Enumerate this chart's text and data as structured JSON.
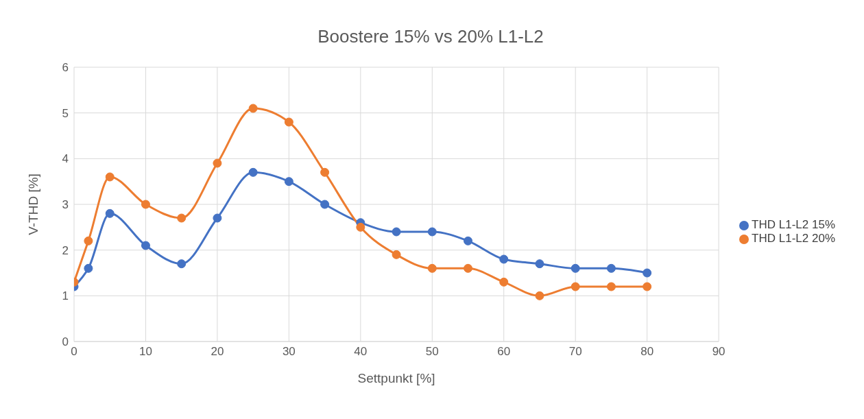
{
  "chart_data": {
    "type": "line",
    "title": "Boostere 15% vs 20% L1-L2",
    "xlabel": "Settpunkt [%]",
    "ylabel": "V-THD [%]",
    "x": [
      0,
      2,
      5,
      10,
      15,
      20,
      25,
      30,
      35,
      40,
      45,
      50,
      55,
      60,
      65,
      70,
      75,
      80
    ],
    "series": [
      {
        "name": "THD L1-L2  15%",
        "color": "#4472c4",
        "values": [
          1.2,
          1.6,
          2.8,
          2.1,
          1.7,
          2.7,
          3.7,
          3.5,
          3.0,
          2.6,
          2.4,
          2.4,
          2.2,
          1.8,
          1.7,
          1.6,
          1.6,
          1.5
        ]
      },
      {
        "name": "THD L1-L2  20%",
        "color": "#ed7d31",
        "values": [
          1.3,
          2.2,
          3.6,
          3.0,
          2.7,
          3.9,
          5.1,
          4.8,
          3.7,
          2.5,
          1.9,
          1.6,
          1.6,
          1.3,
          1.0,
          1.2,
          1.2,
          1.2
        ]
      }
    ],
    "xlim": [
      0,
      90
    ],
    "xticks": [
      0,
      10,
      20,
      30,
      40,
      50,
      60,
      70,
      80,
      90
    ],
    "ylim": [
      0,
      6
    ],
    "yticks": [
      0,
      1,
      2,
      3,
      4,
      5,
      6
    ],
    "grid": true,
    "legend": "right",
    "marker": "circle",
    "line_style": "solid"
  }
}
